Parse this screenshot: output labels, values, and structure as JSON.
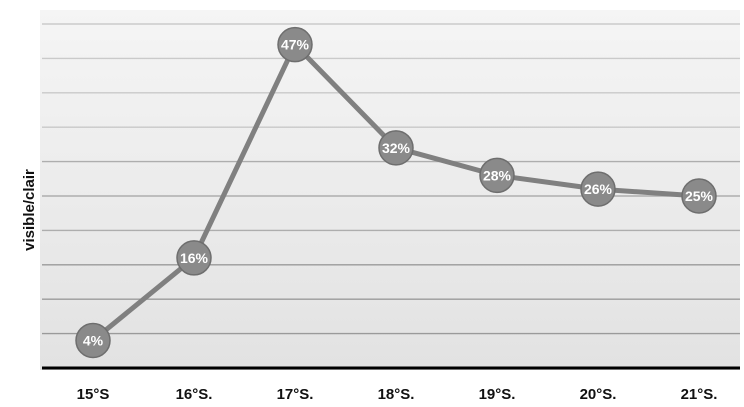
{
  "chart_data": {
    "type": "line",
    "title": "",
    "xlabel": "",
    "ylabel": "visible/clair",
    "categories": [
      "15°S",
      "16°S.",
      "17°S.",
      "18°S.",
      "19°S.",
      "20°S.",
      "21°S."
    ],
    "series": [
      {
        "values": [
          4,
          16,
          47,
          32,
          28,
          26,
          25
        ]
      }
    ],
    "data_labels": [
      "4%",
      "16%",
      "47%",
      "32%",
      "28%",
      "26%",
      "25%"
    ],
    "ylim": [
      0,
      50
    ],
    "y_gridline_step": 5,
    "grid": true,
    "legend": "none",
    "colors": {
      "line": "#808080",
      "marker": "#8a8a8a",
      "marker_edge": "#6e6e6e",
      "gridline": "#9a9a9a",
      "baseline": "#000000",
      "background_top": "#f4f4f4",
      "background_bottom": "#e3e3e3"
    }
  }
}
